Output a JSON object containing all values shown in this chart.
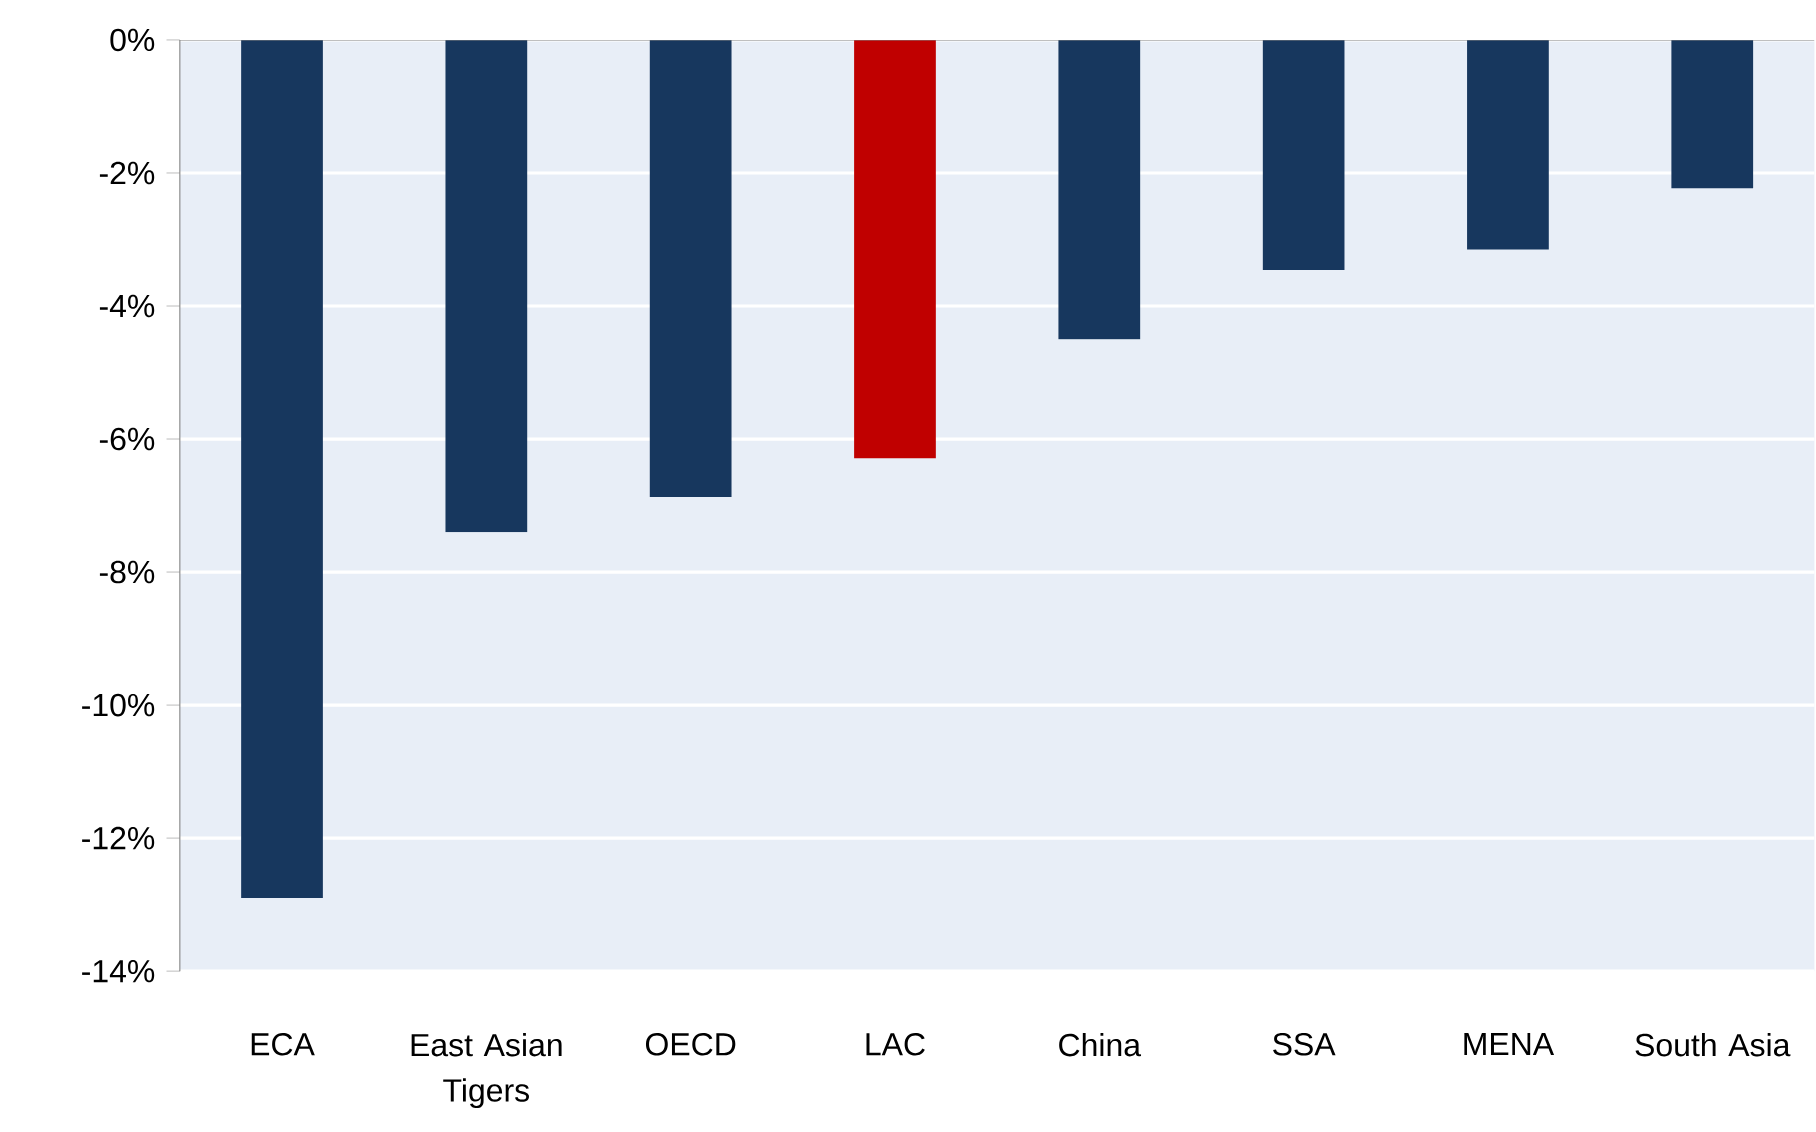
{
  "chart_data": {
    "type": "bar",
    "categories": [
      "ECA",
      "East Asian Tigers",
      "OECD",
      "LAC",
      "China",
      "SSA",
      "MENA",
      "South Asia"
    ],
    "values": [
      -12.9,
      -7.4,
      -6.87,
      -6.29,
      -4.5,
      -3.46,
      -3.15,
      -2.23
    ],
    "colors": [
      "#17375e",
      "#17375e",
      "#17375e",
      "#c00000",
      "#17375e",
      "#17375e",
      "#17375e",
      "#17375e"
    ],
    "ylim": [
      -14,
      0
    ],
    "yticks": [
      {
        "value": -14,
        "label": "-14%"
      },
      {
        "value": -12,
        "label": "-12%"
      },
      {
        "value": -10,
        "label": "-10%"
      },
      {
        "value": -8,
        "label": "-8%"
      },
      {
        "value": -6,
        "label": "-6%"
      },
      {
        "value": -4,
        "label": "-4%"
      },
      {
        "value": -2,
        "label": "-2%"
      },
      {
        "value": 0,
        "label": "0%"
      }
    ],
    "grid": "y"
  }
}
